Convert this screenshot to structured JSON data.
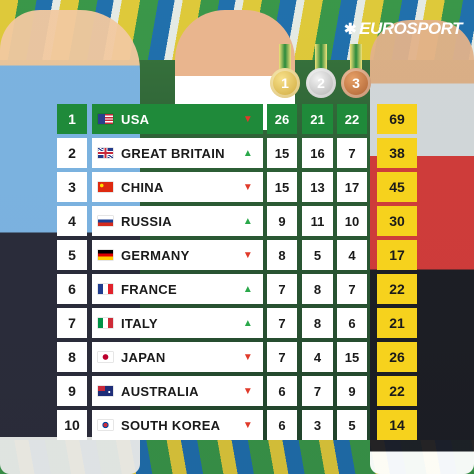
{
  "brand": {
    "logo_text": "EUROSPORT"
  },
  "medals_header": [
    {
      "label": "1",
      "kind": "gold"
    },
    {
      "label": "2",
      "kind": "silver"
    },
    {
      "label": "3",
      "kind": "bronze"
    }
  ],
  "colors": {
    "header_row": "#1f8a3a",
    "total_column": "#f6d21d",
    "trend_up": "#2aa84a",
    "trend_down": "#e03a2a"
  },
  "rows": [
    {
      "rank": "1",
      "country": "USA",
      "flag": "usa-flag-icon",
      "trend": "down",
      "gold": "26",
      "silver": "21",
      "bronze": "22",
      "total": "69"
    },
    {
      "rank": "2",
      "country": "GREAT BRITAIN",
      "flag": "great-britain-flag-icon",
      "trend": "up",
      "gold": "15",
      "silver": "16",
      "bronze": "7",
      "total": "38"
    },
    {
      "rank": "3",
      "country": "CHINA",
      "flag": "china-flag-icon",
      "trend": "down",
      "gold": "15",
      "silver": "13",
      "bronze": "17",
      "total": "45"
    },
    {
      "rank": "4",
      "country": "RUSSIA",
      "flag": "russia-flag-icon",
      "trend": "up",
      "gold": "9",
      "silver": "11",
      "bronze": "10",
      "total": "30"
    },
    {
      "rank": "5",
      "country": "GERMANY",
      "flag": "germany-flag-icon",
      "trend": "down",
      "gold": "8",
      "silver": "5",
      "bronze": "4",
      "total": "17"
    },
    {
      "rank": "6",
      "country": "FRANCE",
      "flag": "france-flag-icon",
      "trend": "up",
      "gold": "7",
      "silver": "8",
      "bronze": "7",
      "total": "22"
    },
    {
      "rank": "7",
      "country": "ITALY",
      "flag": "italy-flag-icon",
      "trend": "up",
      "gold": "7",
      "silver": "8",
      "bronze": "6",
      "total": "21"
    },
    {
      "rank": "8",
      "country": "JAPAN",
      "flag": "japan-flag-icon",
      "trend": "down",
      "gold": "7",
      "silver": "4",
      "bronze": "15",
      "total": "26"
    },
    {
      "rank": "9",
      "country": "AUSTRALIA",
      "flag": "australia-flag-icon",
      "trend": "down",
      "gold": "6",
      "silver": "7",
      "bronze": "9",
      "total": "22"
    },
    {
      "rank": "10",
      "country": "SOUTH KOREA",
      "flag": "south-korea-flag-icon",
      "trend": "down",
      "gold": "6",
      "silver": "3",
      "bronze": "5",
      "total": "14"
    }
  ]
}
